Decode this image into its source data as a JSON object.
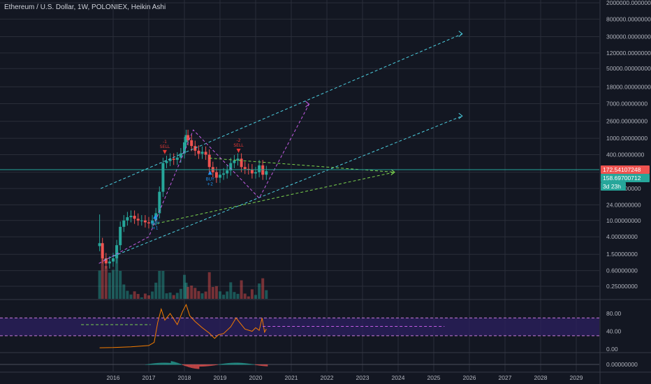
{
  "header": {
    "title": "Ethereum / U.S. Dollar, 1W, POLONIEX, Heikin Ashi"
  },
  "colors": {
    "background": "#131722",
    "grid": "#2a2e39",
    "text": "#b2b5be",
    "up": "#26a69a",
    "down": "#ef5350",
    "trend_cyan": "#4dd0e1",
    "trend_green": "#7cd44e",
    "trend_purple": "#c45ce6",
    "rsi_line": "#f57c00",
    "rsi_band": "#2b1f5c",
    "rsi_band_line": "#c87ad9",
    "price_line": "#26a69a"
  },
  "chart_data": [
    {
      "type": "candlestick",
      "title": "Ethereum / U.S. Dollar, 1W, POLONIEX, Heikin Ashi",
      "scale": "log",
      "x_ticks": [
        "2016",
        "2017",
        "2018",
        "2019",
        "2020",
        "2021",
        "2022",
        "2023",
        "2024",
        "2025",
        "2026",
        "2027",
        "2028",
        "2029"
      ],
      "y_ticks": [
        "2000000.00000000",
        "800000.00000000",
        "300000.00000000",
        "120000.00000000",
        "50000.00000000",
        "18000.00000000",
        "7000.00000000",
        "2600.00000000",
        "1000.00000000",
        "400.00000000",
        "150.00000000",
        "60.00000000",
        "24.00000000",
        "10.00000000",
        "4.00000000",
        "1.50000000",
        "0.60000000",
        "0.25000000"
      ],
      "price_tags": [
        {
          "label": "172.54107248",
          "value": 172.54,
          "color": "#ef5350"
        },
        {
          "label": "158.69700712",
          "value": 158.7,
          "color": "#26a69a"
        },
        {
          "label": "3d 23h",
          "value": 100,
          "color": "#26a69a"
        }
      ],
      "signals": [
        {
          "label": "BUY",
          "sub": "+1",
          "date": "2017.18",
          "value": 11,
          "direction": "up"
        },
        {
          "label": "SELL",
          "sub": "-1",
          "date": "2017.45",
          "value": 520,
          "direction": "down"
        },
        {
          "label": "BUY",
          "sub": "+2",
          "date": "2018.72",
          "value": 130,
          "direction": "up"
        },
        {
          "label": "SELL",
          "sub": "-2",
          "date": "2019.52",
          "value": 560,
          "direction": "down"
        }
      ],
      "trendlines": [
        {
          "style": "cyan",
          "points": [
            [
              "2015.65",
              60
            ],
            [
              "2025.8",
              350000
            ]
          ]
        },
        {
          "style": "cyan",
          "points": [
            [
              "2015.75",
              1.1
            ],
            [
              "2025.8",
              3500
            ]
          ]
        },
        {
          "style": "green",
          "points": [
            [
              "2017.1",
              8
            ],
            [
              "2023.9",
              150
            ]
          ]
        },
        {
          "style": "green",
          "points": [
            [
              "2018.7",
              330
            ],
            [
              "2023.9",
              150
            ]
          ]
        },
        {
          "style": "purple",
          "points": [
            [
              "2015.6",
              0.9
            ],
            [
              "2017.0",
              4
            ],
            [
              "2018.25",
              1600
            ],
            [
              "2020.1",
              35
            ],
            [
              "2021.5",
              6800
            ]
          ]
        }
      ],
      "series": [
        {
          "name": "",
          "x": [
            "2015.62",
            "2015.7",
            "2015.8",
            "2015.9",
            "2016.0",
            "2016.1",
            "2016.2",
            "2016.3",
            "2016.4",
            "2016.5",
            "2016.6",
            "2016.7",
            "2016.8",
            "2016.9",
            "2017.0",
            "2017.1",
            "2017.2",
            "2017.3",
            "2017.4",
            "2017.5",
            "2017.6",
            "2017.7",
            "2017.8",
            "2017.9",
            "2018.0",
            "2018.05",
            "2018.1",
            "2018.2",
            "2018.3",
            "2018.4",
            "2018.5",
            "2018.6",
            "2018.7",
            "2018.8",
            "2018.9",
            "2019.0",
            "2019.1",
            "2019.2",
            "2019.3",
            "2019.4",
            "2019.5",
            "2019.6",
            "2019.7",
            "2019.8",
            "2019.9",
            "2020.0",
            "2020.1",
            "2020.2",
            "2020.3"
          ],
          "values": [
            2.8,
            1.2,
            0.9,
            1.0,
            1.2,
            2.5,
            7,
            10,
            12,
            13,
            11,
            10,
            10,
            9,
            8.5,
            10,
            15,
            50,
            250,
            280,
            320,
            300,
            340,
            430,
            800,
            1200,
            900,
            650,
            500,
            420,
            470,
            400,
            200,
            150,
            110,
            130,
            140,
            165,
            250,
            290,
            320,
            200,
            180,
            175,
            140,
            150,
            220,
            130,
            158.7
          ]
        }
      ]
    },
    {
      "type": "line",
      "title": "",
      "y_ticks": [
        "80.00",
        "40.00",
        "0.00"
      ],
      "band": [
        30,
        70
      ],
      "series": [
        {
          "name": "",
          "x": [
            "2015.62",
            "2016.0",
            "2016.5",
            "2017.0",
            "2017.15",
            "2017.25",
            "2017.35",
            "2017.45",
            "2017.6",
            "2017.8",
            "2017.95",
            "2018.05",
            "2018.15",
            "2018.3",
            "2018.5",
            "2018.7",
            "2018.85",
            "2018.95",
            "2019.1",
            "2019.3",
            "2019.45",
            "2019.55",
            "2019.7",
            "2019.9",
            "2020.0",
            "2020.1",
            "2020.18",
            "2020.25",
            "2020.3"
          ],
          "values": [
            3,
            3.5,
            5,
            8,
            15,
            60,
            90,
            65,
            80,
            55,
            85,
            100,
            75,
            62,
            48,
            36,
            24,
            32,
            35,
            50,
            70,
            60,
            45,
            40,
            48,
            42,
            70,
            38,
            45
          ]
        }
      ]
    },
    {
      "type": "bar",
      "title": "",
      "y_ticks": [
        "0.00000000"
      ],
      "series": [
        {
          "name": "",
          "values": []
        }
      ]
    }
  ]
}
